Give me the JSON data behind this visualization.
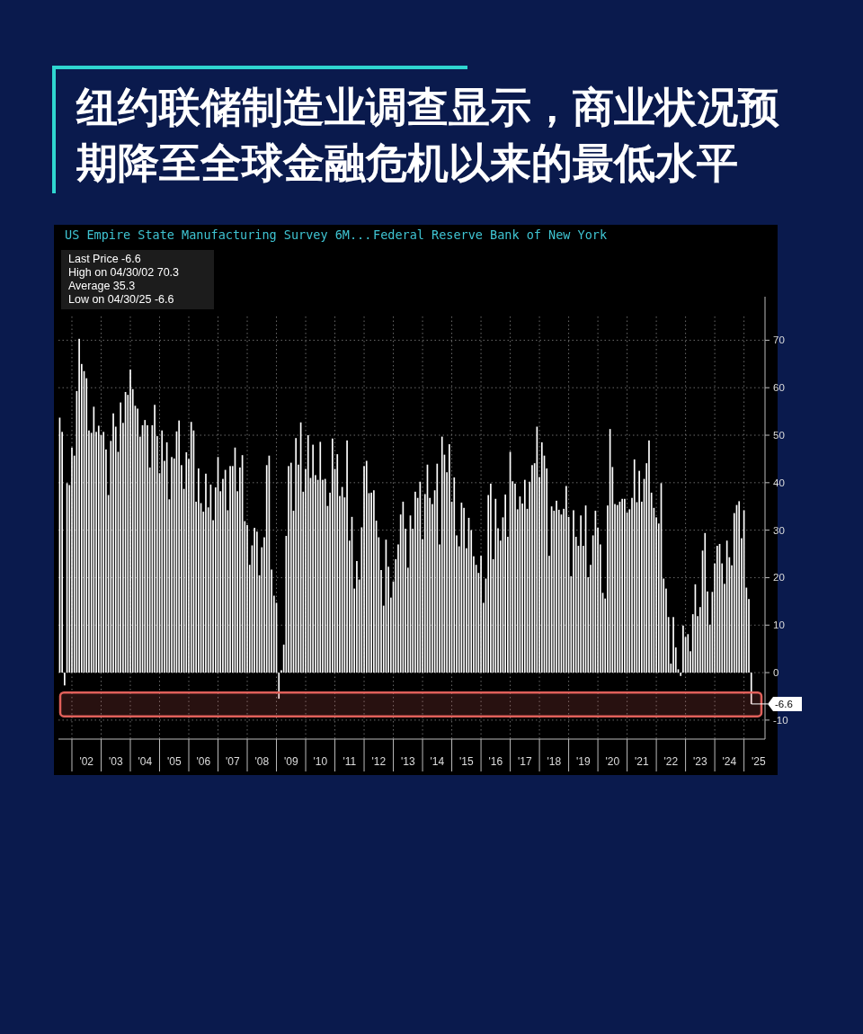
{
  "chart_data": {
    "type": "bar",
    "title": "纽约联储制造业调查显示，商业状况预期降至全球金融危机以来的最低水平",
    "subtitle": "US Empire State Manufacturing Survey 6M...",
    "annotations": [
      "Federal Reserve Bank of New York",
      "Last Price -6.6",
      "High on 04/30/02 70.3",
      "Average 35.3",
      "Low on 04/30/25 -6.6",
      {
        "text": "-6.6",
        "x": "2025-04",
        "y": -6.6
      }
    ],
    "color": "#ffffff",
    "x": [
      "2001-08",
      "2001-09",
      "2001-10",
      "2001-11",
      "2001-12",
      "2002-01",
      "2002-02",
      "2002-03",
      "2002-04",
      "2002-05",
      "2002-06",
      "2002-07",
      "2002-08",
      "2002-09",
      "2002-10",
      "2002-11",
      "2002-12",
      "2003-01",
      "2003-02",
      "2003-03",
      "2003-04",
      "2003-05",
      "2003-06",
      "2003-07",
      "2003-08",
      "2003-09",
      "2003-10",
      "2003-11",
      "2003-12",
      "2004-01",
      "2004-02",
      "2004-03",
      "2004-04",
      "2004-05",
      "2004-06",
      "2004-07",
      "2004-08",
      "2004-09",
      "2004-10",
      "2004-11",
      "2004-12",
      "2005-01",
      "2005-02",
      "2005-03",
      "2005-04",
      "2005-05",
      "2005-06",
      "2005-07",
      "2005-08",
      "2005-09",
      "2005-10",
      "2005-11",
      "2005-12",
      "2006-01",
      "2006-02",
      "2006-03",
      "2006-04",
      "2006-05",
      "2006-06",
      "2006-07",
      "2006-08",
      "2006-09",
      "2006-10",
      "2006-11",
      "2006-12",
      "2007-01",
      "2007-02",
      "2007-03",
      "2007-04",
      "2007-05",
      "2007-06",
      "2007-07",
      "2007-08",
      "2007-09",
      "2007-10",
      "2007-11",
      "2007-12",
      "2008-01",
      "2008-02",
      "2008-03",
      "2008-04",
      "2008-05",
      "2008-06",
      "2008-07",
      "2008-08",
      "2008-09",
      "2008-10",
      "2008-11",
      "2008-12",
      "2009-01",
      "2009-02",
      "2009-03",
      "2009-04",
      "2009-05",
      "2009-06",
      "2009-07",
      "2009-08",
      "2009-09",
      "2009-10",
      "2009-11",
      "2009-12",
      "2010-01",
      "2010-02",
      "2010-03",
      "2010-04",
      "2010-05",
      "2010-06",
      "2010-07",
      "2010-08",
      "2010-09",
      "2010-10",
      "2010-11",
      "2010-12",
      "2011-01",
      "2011-02",
      "2011-03",
      "2011-04",
      "2011-05",
      "2011-06",
      "2011-07",
      "2011-08",
      "2011-09",
      "2011-10",
      "2011-11",
      "2011-12",
      "2012-01",
      "2012-02",
      "2012-03",
      "2012-04",
      "2012-05",
      "2012-06",
      "2012-07",
      "2012-08",
      "2012-09",
      "2012-10",
      "2012-11",
      "2012-12",
      "2013-01",
      "2013-02",
      "2013-03",
      "2013-04",
      "2013-05",
      "2013-06",
      "2013-07",
      "2013-08",
      "2013-09",
      "2013-10",
      "2013-11",
      "2013-12",
      "2014-01",
      "2014-02",
      "2014-03",
      "2014-04",
      "2014-05",
      "2014-06",
      "2014-07",
      "2014-08",
      "2014-09",
      "2014-10",
      "2014-11",
      "2014-12",
      "2015-01",
      "2015-02",
      "2015-03",
      "2015-04",
      "2015-05",
      "2015-06",
      "2015-07",
      "2015-08",
      "2015-09",
      "2015-10",
      "2015-11",
      "2015-12",
      "2016-01",
      "2016-02",
      "2016-03",
      "2016-04",
      "2016-05",
      "2016-06",
      "2016-07",
      "2016-08",
      "2016-09",
      "2016-10",
      "2016-11",
      "2016-12",
      "2017-01",
      "2017-02",
      "2017-03",
      "2017-04",
      "2017-05",
      "2017-06",
      "2017-07",
      "2017-08",
      "2017-09",
      "2017-10",
      "2017-11",
      "2017-12",
      "2018-01",
      "2018-02",
      "2018-03",
      "2018-04",
      "2018-05",
      "2018-06",
      "2018-07",
      "2018-08",
      "2018-09",
      "2018-10",
      "2018-11",
      "2018-12",
      "2019-01",
      "2019-02",
      "2019-03",
      "2019-04",
      "2019-05",
      "2019-06",
      "2019-07",
      "2019-08",
      "2019-09",
      "2019-10",
      "2019-11",
      "2019-12",
      "2020-01",
      "2020-02",
      "2020-03",
      "2020-04",
      "2020-05",
      "2020-06",
      "2020-07",
      "2020-08",
      "2020-09",
      "2020-10",
      "2020-11",
      "2020-12",
      "2021-01",
      "2021-02",
      "2021-03",
      "2021-04",
      "2021-05",
      "2021-06",
      "2021-07",
      "2021-08",
      "2021-09",
      "2021-10",
      "2021-11",
      "2021-12",
      "2022-01",
      "2022-02",
      "2022-03",
      "2022-04",
      "2022-05",
      "2022-06",
      "2022-07",
      "2022-08",
      "2022-09",
      "2022-10",
      "2022-11",
      "2022-12",
      "2023-01",
      "2023-02",
      "2023-03",
      "2023-04",
      "2023-05",
      "2023-06",
      "2023-07",
      "2023-08",
      "2023-09",
      "2023-10",
      "2023-11",
      "2023-12",
      "2024-01",
      "2024-02",
      "2024-03",
      "2024-04",
      "2024-05",
      "2024-06",
      "2024-07",
      "2024-08",
      "2024-09",
      "2024-10",
      "2024-11",
      "2024-12",
      "2025-01",
      "2025-02",
      "2025-03",
      "2025-04"
    ],
    "values": [
      53.7,
      50.7,
      -2.7,
      39.9,
      39.5,
      47.4,
      45.7,
      59.3,
      70.3,
      65,
      63.5,
      62,
      51,
      50.5,
      56,
      50.7,
      52,
      50,
      50.7,
      47,
      37.4,
      48.8,
      54.6,
      51.8,
      46.5,
      56.9,
      52.6,
      59.1,
      58.5,
      63.8,
      59.7,
      56.2,
      55.6,
      49.7,
      52.1,
      53.2,
      52.1,
      43.2,
      52.1,
      56.4,
      49.8,
      42,
      51,
      44.6,
      48.5,
      36.5,
      45.4,
      45.1,
      50.8,
      53.1,
      43.7,
      38.7,
      46.4,
      45,
      52.8,
      51,
      36,
      43,
      35.7,
      33.9,
      41.9,
      34.8,
      39.6,
      32.1,
      39,
      45.4,
      38.2,
      40.8,
      42.7,
      34.2,
      43.5,
      43.5,
      47.4,
      38.2,
      43.2,
      45.8,
      31.9,
      31.1,
      22.7,
      26.8,
      30.5,
      29.7,
      20.5,
      26.4,
      28.5,
      43.7,
      45.7,
      21.7,
      16.2,
      14.7,
      -5.5,
      0.5,
      5.9,
      28.8,
      43.5,
      44.2,
      34.1,
      49.4,
      43.8,
      52.7,
      38.1,
      42.9,
      50,
      41,
      48,
      41.6,
      40.6,
      48.6,
      40.6,
      40.8,
      35.1,
      37.9,
      49.3,
      42.9,
      46,
      37.2,
      39.1,
      36.9,
      48.9,
      27.8,
      32.8,
      17.7,
      23.5,
      19.6,
      30.6,
      43.5,
      44.6,
      37.8,
      37.9,
      38.4,
      32,
      28.5,
      21.6,
      14.1,
      28,
      22.3,
      15.8,
      19.2,
      23.9,
      27,
      33.3,
      36,
      30.3,
      22.1,
      33.1,
      30.3,
      38.1,
      36.8,
      40.2,
      28.1,
      37.6,
      43.8,
      36.8,
      35.5,
      38.4,
      44,
      27,
      49.7,
      45.9,
      42.2,
      48.1,
      36,
      41.1,
      28.9,
      26.6,
      35.8,
      34.7,
      26.2,
      32.6,
      30,
      24.5,
      22.7,
      21,
      24.6,
      14.7,
      19.8,
      37.4,
      39.8,
      23.9,
      36.6,
      30.4,
      27.8,
      32.7,
      37.5,
      28.6,
      46.5,
      40.3,
      39.8,
      34.4,
      37.1,
      35.6,
      40.6,
      34.5,
      40.2,
      43.7,
      44.1,
      51.8,
      41.2,
      48.5,
      45.7,
      43,
      24.6,
      35,
      34.1,
      36.2,
      34.3,
      33.3,
      34.5,
      39.3,
      32.8,
      20.3,
      34.2,
      28.6,
      26.7,
      33.1,
      26.7,
      35.2,
      20.1,
      22.7,
      28.9,
      34.1,
      30.5,
      27,
      16.8,
      15.6,
      35.2,
      51.3,
      43.3,
      35.5,
      35.3,
      36,
      36.6,
      36.6,
      33.7,
      34.4,
      36.8,
      44.9,
      35.9,
      42.5,
      36,
      40.8,
      44.1,
      48.9,
      37.9,
      34.7,
      32.7,
      31.4,
      39.9,
      19.8,
      17.7,
      11.7,
      1.9,
      11.7,
      5.3,
      0.7,
      -0.7,
      9.9,
      7.5,
      8.1,
      4.5,
      12.3,
      18.6,
      11.9,
      13.8,
      25.7,
      29.4,
      17.1,
      10.1,
      17,
      23,
      26.7,
      27.1,
      23,
      18.7,
      27.8,
      24.3,
      22.6,
      33.6,
      35.3,
      36.1,
      28.3,
      34.2,
      17.9,
      15.5,
      -6.6
    ],
    "xlim": [
      "2001-07-15",
      "2025-09-20"
    ],
    "xticks": [
      {
        "value": "2002-01",
        "label": null
      },
      {
        "value": "2002-07",
        "label": "'02"
      },
      {
        "value": "2003-01",
        "label": null
      },
      {
        "value": "2003-07",
        "label": "'03"
      },
      {
        "value": "2004-01",
        "label": null
      },
      {
        "value": "2004-07",
        "label": "'04"
      },
      {
        "value": "2005-01",
        "label": null
      },
      {
        "value": "2005-07",
        "label": "'05"
      },
      {
        "value": "2006-01",
        "label": null
      },
      {
        "value": "2006-07",
        "label": "'06"
      },
      {
        "value": "2007-01",
        "label": null
      },
      {
        "value": "2007-07",
        "label": "'07"
      },
      {
        "value": "2008-01",
        "label": null
      },
      {
        "value": "2008-07",
        "label": "'08"
      },
      {
        "value": "2009-01",
        "label": null
      },
      {
        "value": "2009-07",
        "label": "'09"
      },
      {
        "value": "2010-01",
        "label": null
      },
      {
        "value": "2010-07",
        "label": "'10"
      },
      {
        "value": "2011-01",
        "label": null
      },
      {
        "value": "2011-07",
        "label": "'11"
      },
      {
        "value": "2012-01",
        "label": null
      },
      {
        "value": "2012-07",
        "label": "'12"
      },
      {
        "value": "2013-01",
        "label": null
      },
      {
        "value": "2013-07",
        "label": "'13"
      },
      {
        "value": "2014-01",
        "label": null
      },
      {
        "value": "2014-07",
        "label": "'14"
      },
      {
        "value": "2015-01",
        "label": null
      },
      {
        "value": "2015-07",
        "label": "'15"
      },
      {
        "value": "2016-01",
        "label": null
      },
      {
        "value": "2016-07",
        "label": "'16"
      },
      {
        "value": "2017-01",
        "label": null
      },
      {
        "value": "2017-07",
        "label": "'17"
      },
      {
        "value": "2018-01",
        "label": null
      },
      {
        "value": "2018-07",
        "label": "'18"
      },
      {
        "value": "2019-01",
        "label": null
      },
      {
        "value": "2019-07",
        "label": "'19"
      },
      {
        "value": "2020-01",
        "label": null
      },
      {
        "value": "2020-07",
        "label": "'20"
      },
      {
        "value": "2021-01",
        "label": null
      },
      {
        "value": "2021-07",
        "label": "'21"
      },
      {
        "value": "2022-01",
        "label": null
      },
      {
        "value": "2022-07",
        "label": "'22"
      },
      {
        "value": "2023-01",
        "label": null
      },
      {
        "value": "2023-07",
        "label": "'23"
      },
      {
        "value": "2024-01",
        "label": null
      },
      {
        "value": "2024-07",
        "label": "'24"
      },
      {
        "value": "2025-01",
        "label": null
      },
      {
        "value": "2025-07",
        "label": "'25"
      }
    ],
    "ylim": [
      -14,
      75
    ],
    "yticks": [
      -10,
      0,
      10,
      20,
      30,
      40,
      50,
      60,
      70
    ],
    "grid": true,
    "bands": [
      {
        "axis": "y",
        "from": -4.2,
        "to": -9.2,
        "color": "#e0605a"
      }
    ]
  }
}
